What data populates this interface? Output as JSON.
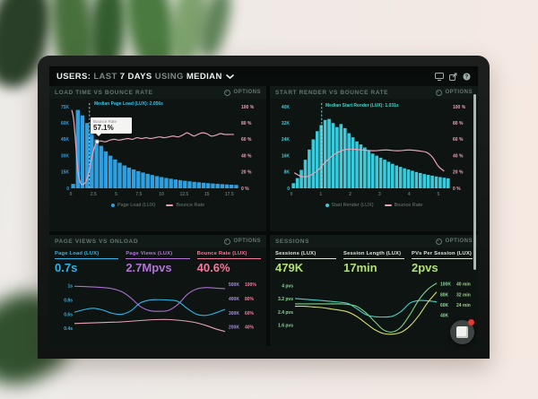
{
  "ui": {
    "options_label": "OPTIONS"
  },
  "header": {
    "users": "USERS: ",
    "last": "LAST ",
    "days": "7 DAYS ",
    "using": "USING ",
    "median": "MEDIAN",
    "icons": [
      "display-icon",
      "export-icon",
      "help-icon"
    ],
    "help_glyph": "?"
  },
  "panels": {
    "load_time": {
      "title": "LOAD TIME VS BOUNCE RATE"
    },
    "start_render": {
      "title": "START RENDER VS BOUNCE RATE"
    },
    "page_views": {
      "title": "PAGE VIEWS VS ONLOAD"
    },
    "sessions": {
      "title": "SESSIONS"
    }
  },
  "tooltip": {
    "title": "Bounce Rate",
    "value": "57.1%"
  },
  "annotations": {
    "load_median": "Median Page Load (LUX): 2.056s",
    "render_median": "Median Start Render (LUX): 1.031s"
  },
  "legends": {
    "load": {
      "a": "Page Load (LUX)",
      "b": "Bounce Rate"
    },
    "render": {
      "a": "Start Render (LUX)",
      "b": "Bounce Rate"
    }
  },
  "metrics": {
    "page_load": {
      "label": "Page Load (LUX)",
      "value": "0.7s"
    },
    "page_views": {
      "label": "Page Views (LUX)",
      "value": "2.7Mpvs"
    },
    "bounce_rate": {
      "label": "Bounce Rate (LUX)",
      "value": "40.6%"
    },
    "sessions": {
      "label": "Sessions (LUX)",
      "value": "479K"
    },
    "session_length": {
      "label": "Session Length (LUX)",
      "value": "17min"
    },
    "pvs_per_session": {
      "label": "PVs Per Session (LUX)",
      "value": "2pvs"
    }
  },
  "colors": {
    "blue": "#2f9fe0",
    "teal": "#3cc9da",
    "pink": "#e8a3b6",
    "purple": "#a96fd1",
    "green": "#7fd387",
    "yellow": "#d3dc6f",
    "accent_green_value": "#b4e074",
    "notification_red": "#e23b33"
  },
  "chart_data": [
    {
      "type": "histogram_line",
      "title": "LOAD TIME VS BOUNCE RATE",
      "legend": [
        "Page Load (LUX)",
        "Bounce Rate"
      ],
      "bars": {
        "name": "Page Load (LUX)",
        "color": "#2f9fe0",
        "max": 75,
        "unit": "K",
        "values": [
          4,
          72,
          67,
          60,
          52,
          45,
          39,
          34,
          30,
          26.5,
          23.5,
          21,
          19,
          17.3,
          15.8,
          14.5,
          13.3,
          12.2,
          11.2,
          10.3,
          9.5,
          8.8,
          8.1,
          7.5,
          6.9,
          6.4,
          5.9,
          5.5,
          5.1,
          4.7,
          4.4,
          4.1,
          3.8,
          3.5,
          3.3,
          3.1
        ]
      },
      "axes": {
        "left": {
          "ticks": [
            "75K",
            "60K",
            "45K",
            "30K",
            "15K",
            "0"
          ],
          "color": "#2f9fe0"
        },
        "right": {
          "ticks": [
            "100 %",
            "80 %",
            "60 %",
            "40 %",
            "20 %",
            "0 %"
          ],
          "color": "#e8a3b6"
        },
        "x": {
          "max": 18.5,
          "color": "#5e6f6a",
          "ticks": [
            {
              "v": 0,
              "l": "0"
            },
            {
              "v": 2.5,
              "l": "2.5"
            },
            {
              "v": 5,
              "l": "5"
            },
            {
              "v": 7.5,
              "l": "7.5"
            },
            {
              "v": 10,
              "l": "10"
            },
            {
              "v": 12.5,
              "l": "12.5"
            },
            {
              "v": 15,
              "l": "15"
            },
            {
              "v": 17.5,
              "l": "17.5"
            }
          ]
        }
      },
      "line": {
        "name": "Bounce Rate",
        "color": "#e8a3b6",
        "points": [
          [
            0.1,
            96
          ],
          [
            0.3,
            85
          ],
          [
            0.5,
            60
          ],
          [
            0.7,
            30
          ],
          [
            0.9,
            13
          ],
          [
            1.1,
            6
          ],
          [
            1.4,
            5
          ],
          [
            1.7,
            9
          ],
          [
            2.0,
            20
          ],
          [
            2.3,
            37
          ],
          [
            2.6,
            50
          ],
          [
            2.9,
            57.1
          ],
          [
            3.3,
            58
          ],
          [
            3.8,
            57
          ],
          [
            4.3,
            59
          ],
          [
            4.8,
            60
          ],
          [
            5.3,
            59
          ],
          [
            5.8,
            60
          ],
          [
            6.3,
            61
          ],
          [
            6.8,
            60
          ],
          [
            7.3,
            62
          ],
          [
            7.8,
            61
          ],
          [
            8.3,
            62
          ],
          [
            8.8,
            61
          ],
          [
            9.3,
            62
          ],
          [
            9.8,
            63
          ],
          [
            10.3,
            62
          ],
          [
            10.8,
            63
          ],
          [
            11.3,
            64
          ],
          [
            11.8,
            63
          ],
          [
            12.3,
            65
          ],
          [
            12.8,
            68
          ],
          [
            13.2,
            66
          ],
          [
            13.6,
            64
          ],
          [
            14.0,
            66
          ],
          [
            14.5,
            68
          ],
          [
            15.0,
            67
          ],
          [
            15.5,
            64
          ],
          [
            16.0,
            65
          ],
          [
            16.5,
            67
          ],
          [
            17.0,
            66
          ],
          [
            17.5,
            66
          ],
          [
            18.0,
            66
          ]
        ]
      },
      "median_x": 2.056,
      "median_color": "#9fdcef",
      "marker": {
        "x": 2.9,
        "y": 57.1
      }
    },
    {
      "type": "histogram_line",
      "title": "START RENDER VS BOUNCE RATE",
      "legend": [
        "Start Render (LUX)",
        "Bounce Rate"
      ],
      "bars": {
        "name": "Start Render (LUX)",
        "color": "#3cc9da",
        "max": 40,
        "unit": "K",
        "values": [
          2.5,
          5,
          9,
          14,
          19,
          24,
          28,
          31,
          33.5,
          34,
          32,
          30,
          31.5,
          29.5,
          27,
          25,
          23,
          21.5,
          20,
          18.5,
          17,
          16,
          15,
          14,
          13,
          12,
          11.2,
          10.5,
          9.8,
          9.2,
          8.6,
          8,
          7.5,
          7,
          6.6,
          6.2,
          5.8,
          5.5,
          5.2,
          4.9
        ]
      },
      "axes": {
        "left": {
          "ticks": [
            "40K",
            "32K",
            "24K",
            "16K",
            "8K",
            "0"
          ],
          "color": "#3cc9da"
        },
        "right": {
          "ticks": [
            "100 %",
            "80 %",
            "60 %",
            "40 %",
            "20 %",
            "0 %"
          ],
          "color": "#e8a3b6"
        },
        "x": {
          "max": 5.4,
          "color": "#5e6f6a",
          "ticks": [
            {
              "v": 0,
              "l": "0"
            },
            {
              "v": 1,
              "l": "1"
            },
            {
              "v": 2,
              "l": "2"
            },
            {
              "v": 3,
              "l": "3"
            },
            {
              "v": 4,
              "l": "4"
            },
            {
              "v": 5,
              "l": "5"
            }
          ]
        }
      },
      "line": {
        "name": "Bounce Rate",
        "color": "#e8a3b6",
        "points": [
          [
            0.1,
            19
          ],
          [
            0.3,
            15
          ],
          [
            0.5,
            14
          ],
          [
            0.7,
            17
          ],
          [
            0.9,
            22
          ],
          [
            1.1,
            30
          ],
          [
            1.4,
            40
          ],
          [
            1.7,
            46
          ],
          [
            2.0,
            48
          ],
          [
            2.4,
            47
          ],
          [
            2.8,
            46
          ],
          [
            3.2,
            47
          ],
          [
            3.6,
            46
          ],
          [
            4.0,
            47
          ],
          [
            4.3,
            46
          ],
          [
            4.6,
            44
          ],
          [
            4.8,
            38
          ],
          [
            5.0,
            27
          ],
          [
            5.2,
            21
          ]
        ]
      },
      "median_x": 1.031,
      "median_color": "#8fe3d8",
      "marker": null
    },
    {
      "type": "multiline",
      "title": "PAGE VIEWS VS ONLOAD",
      "axes": {
        "left": {
          "min": 0.33,
          "max": 1.06,
          "color": "#2fb5ea",
          "ticks": [
            {
              "v": 1,
              "l": "1s"
            },
            {
              "v": 0.8,
              "l": "0.8s"
            },
            {
              "v": 0.6,
              "l": "0.6s"
            },
            {
              "v": 0.4,
              "l": "0.4s"
            }
          ]
        },
        "right": {
          "min": 155,
          "max": 520,
          "color": "#a98fd6",
          "color2": "#f07d9d",
          "ticks": [
            {
              "v": 500,
              "l1": "500K",
              "l2": "100%"
            },
            {
              "v": 400,
              "l1": "400K",
              "l2": "80%"
            },
            {
              "v": 300,
              "l1": "300K",
              "l2": "60%"
            },
            {
              "v": 200,
              "l1": "200K",
              "l2": "40%"
            }
          ]
        },
        "pct": {
          "min": 26,
          "max": 104
        }
      },
      "series": [
        {
          "name": "Page Views (LUX)",
          "axis": "right",
          "color": "#a96fd1",
          "y": [
            487,
            485,
            482,
            478,
            470,
            450,
            405,
            345,
            316,
            311,
            318,
            360,
            430,
            468,
            478,
            474,
            470
          ]
        },
        {
          "name": "Page Load (LUX)",
          "axis": "left",
          "color": "#2fb5ea",
          "y": [
            0.63,
            0.665,
            0.685,
            0.66,
            0.615,
            0.6,
            0.65,
            0.76,
            0.8,
            0.805,
            0.8,
            0.78,
            0.68,
            0.6,
            0.585,
            0.62,
            0.67
          ]
        },
        {
          "name": "Bounce Rate (LUX)",
          "axis": "pct",
          "color": "#e8a3b6",
          "y": [
            41,
            41.5,
            42,
            42.5,
            43,
            43.5,
            44.5,
            45.5,
            46.5,
            47,
            47,
            46,
            44.5,
            42,
            38,
            33,
            29
          ]
        }
      ]
    },
    {
      "type": "multiline",
      "title": "SESSIONS",
      "axes": {
        "left": {
          "min": 1.1,
          "max": 4.25,
          "color": "#8fd59a",
          "ticks": [
            {
              "v": 4,
              "l": "4 pvs"
            },
            {
              "v": 3.2,
              "l": "3.2 pvs"
            },
            {
              "v": 2.4,
              "l": "2.4 pvs"
            },
            {
              "v": 1.6,
              "l": "1.6 pvs"
            }
          ]
        },
        "right": {
          "min": 5,
          "max": 105,
          "color": "#8fd59a",
          "color2": "#9fce8e",
          "ticks": [
            {
              "v": 100,
              "l1": "100K",
              "l2": "40 min"
            },
            {
              "v": 80,
              "l1": "80K",
              "l2": "32 min"
            },
            {
              "v": 60,
              "l1": "60K",
              "l2": "24 min"
            },
            {
              "v": 40,
              "l1": "40K",
              "l2": ""
            }
          ]
        },
        "min": {
          "min": 2,
          "max": 42
        }
      },
      "series": [
        {
          "name": "PVs Per Session (LUX)",
          "axis": "left",
          "color": "#45d1c5",
          "y": [
            3.22,
            3.18,
            3.14,
            3.1,
            3.05,
            3.0,
            2.92,
            2.6,
            2.25,
            2.12,
            2.1,
            2.15,
            2.45,
            2.95,
            3.1,
            3.08,
            3.02
          ]
        },
        {
          "name": "Sessions (LUX)",
          "axis": "right",
          "color": "#7fd387",
          "y": [
            62,
            62,
            62,
            62,
            62,
            62,
            61,
            57,
            45,
            28,
            12,
            8,
            18,
            42,
            70,
            90,
            102
          ]
        },
        {
          "name": "Session Length (LUX)",
          "axis": "min",
          "color": "#d3dc6f",
          "y": [
            23,
            23,
            22.5,
            22,
            21,
            20,
            18.5,
            15,
            10,
            5,
            2,
            1.5,
            3,
            8,
            16,
            26,
            34
          ]
        }
      ]
    }
  ]
}
